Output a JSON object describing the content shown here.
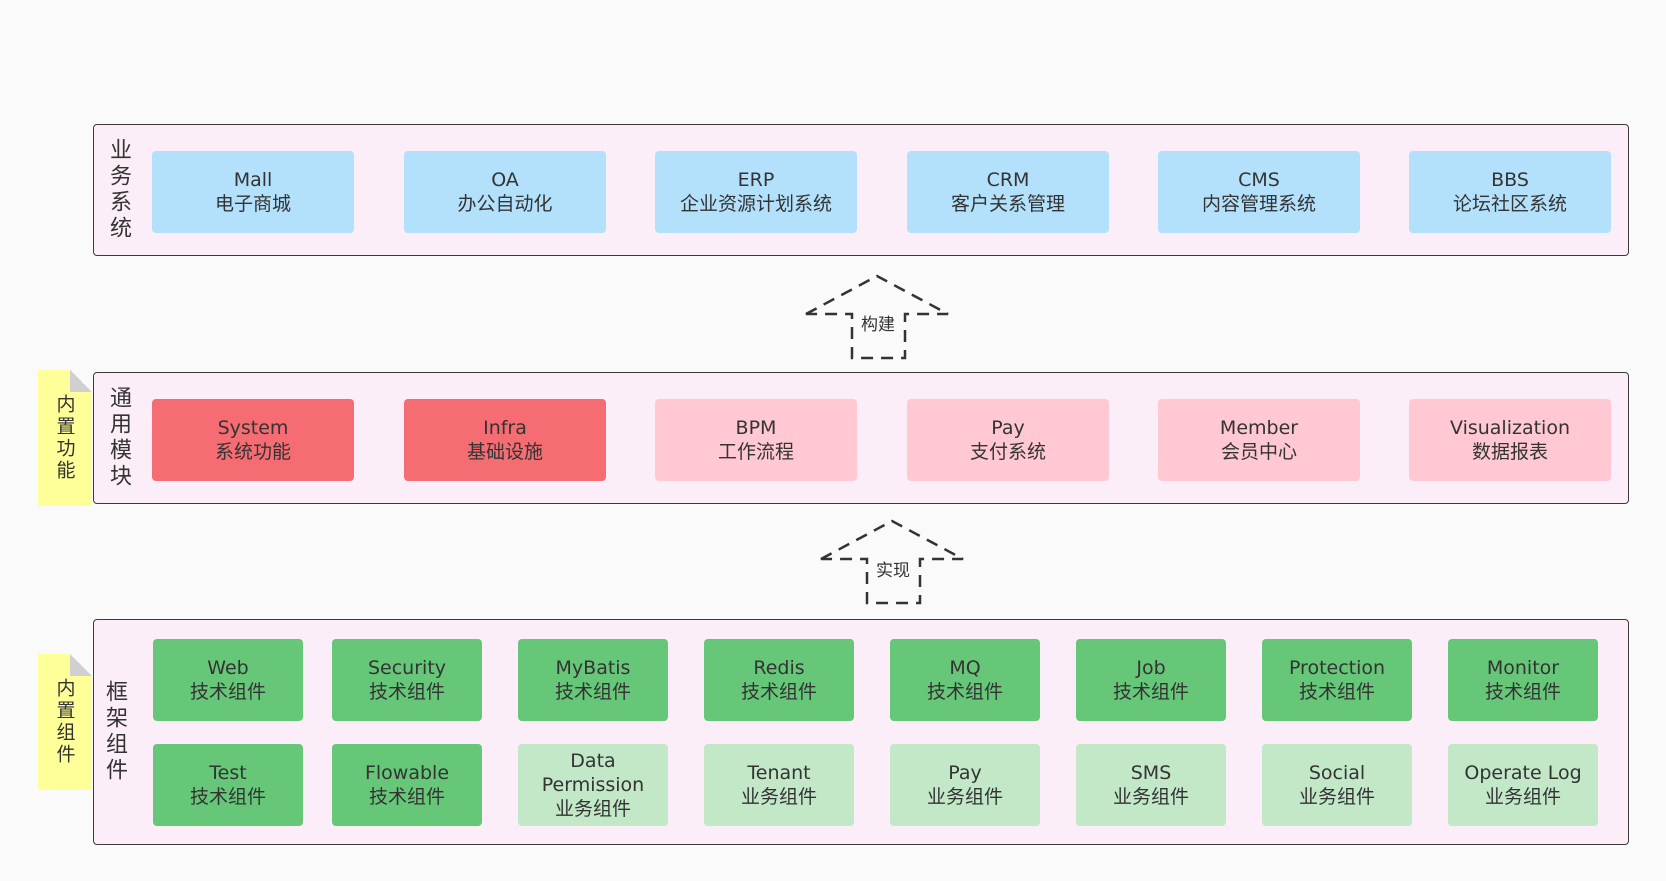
{
  "business_layer": {
    "title": "业务系统",
    "items": [
      {
        "en": "Mall",
        "zh": "电子商城"
      },
      {
        "en": "OA",
        "zh": "办公自动化"
      },
      {
        "en": "ERP",
        "zh": "企业资源计划系统"
      },
      {
        "en": "CRM",
        "zh": "客户关系管理"
      },
      {
        "en": "CMS",
        "zh": "内容管理系统"
      },
      {
        "en": "BBS",
        "zh": "论坛社区系统"
      }
    ]
  },
  "arrow_build": {
    "label": "构建"
  },
  "module_layer": {
    "title": "通用模块",
    "note": "内置功能",
    "items": [
      {
        "en": "System",
        "zh": "系统功能"
      },
      {
        "en": "Infra",
        "zh": "基础设施"
      },
      {
        "en": "BPM",
        "zh": "工作流程"
      },
      {
        "en": "Pay",
        "zh": "支付系统"
      },
      {
        "en": "Member",
        "zh": "会员中心"
      },
      {
        "en": "Visualization",
        "zh": "数据报表"
      }
    ]
  },
  "arrow_impl": {
    "label": "实现"
  },
  "framework_layer": {
    "title": "框架组件",
    "note": "内置组件",
    "row1": [
      {
        "en": "Web",
        "zh": "技术组件"
      },
      {
        "en": "Security",
        "zh": "技术组件"
      },
      {
        "en": "MyBatis",
        "zh": "技术组件"
      },
      {
        "en": "Redis",
        "zh": "技术组件"
      },
      {
        "en": "MQ",
        "zh": "技术组件"
      },
      {
        "en": "Job",
        "zh": "技术组件"
      },
      {
        "en": "Protection",
        "zh": "技术组件"
      },
      {
        "en": "Monitor",
        "zh": "技术组件"
      }
    ],
    "row2": [
      {
        "en": "Test",
        "zh": "技术组件"
      },
      {
        "en": "Flowable",
        "zh": "技术组件"
      },
      {
        "en": "Data\nPermission",
        "zh": "业务组件"
      },
      {
        "en": "Tenant",
        "zh": "业务组件"
      },
      {
        "en": "Pay",
        "zh": "业务组件"
      },
      {
        "en": "SMS",
        "zh": "业务组件"
      },
      {
        "en": "Social",
        "zh": "业务组件"
      },
      {
        "en": "Operate Log",
        "zh": "业务组件"
      }
    ]
  },
  "colors": {
    "blue": "#b3e1fc",
    "red": "#f56d73",
    "pink": "#ffc8d2",
    "green": "#66c778",
    "light_green": "#c2e8c8",
    "layer_bg": "#fbeef8",
    "note_bg": "#ffff99"
  }
}
